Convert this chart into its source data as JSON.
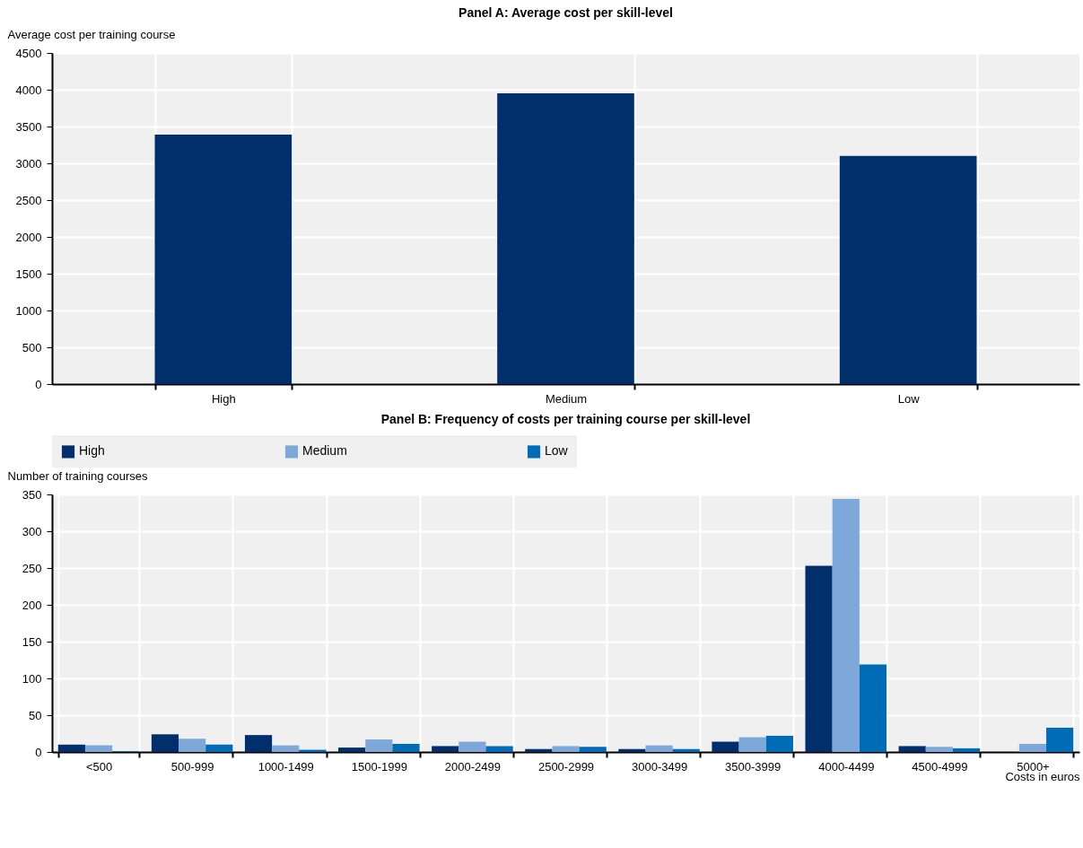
{
  "chart_data": [
    {
      "type": "bar",
      "title": "Panel A: Average cost per skill-level",
      "ylabel": "Average cost per training course",
      "categories": [
        "High",
        "Medium",
        "Low"
      ],
      "values": [
        3390,
        3950,
        3100
      ],
      "color": "#002f6c",
      "ylim": [
        0,
        4500
      ],
      "yticks": [
        0,
        500,
        1000,
        1500,
        2000,
        2500,
        3000,
        3500,
        4000,
        4500
      ],
      "grid": true
    },
    {
      "type": "bar",
      "title": "Panel B: Frequency of costs per training course per skill-level",
      "ylabel": "Number of training courses",
      "xlabel": "Costs in euros",
      "categories": [
        "<500",
        "500-999",
        "1000-1499",
        "1500-1999",
        "2000-2499",
        "2500-2999",
        "3000-3499",
        "3500-3999",
        "4000-4499",
        "4500-4999",
        "5000+"
      ],
      "series": [
        {
          "name": "High",
          "color": "#002f6c",
          "values": [
            10,
            24,
            23,
            6,
            8,
            4,
            4,
            14,
            253,
            8,
            0
          ]
        },
        {
          "name": "Medium",
          "color": "#7fa8da",
          "values": [
            9,
            18,
            9,
            17,
            14,
            8,
            9,
            20,
            344,
            7,
            11
          ]
        },
        {
          "name": "Low",
          "color": "#006bb6",
          "values": [
            1,
            10,
            3,
            11,
            8,
            7,
            4,
            22,
            119,
            5,
            33
          ]
        }
      ],
      "ylim": [
        0,
        350
      ],
      "yticks": [
        0,
        50,
        100,
        150,
        200,
        250,
        300,
        350
      ],
      "grid": true,
      "legend": "top"
    }
  ]
}
